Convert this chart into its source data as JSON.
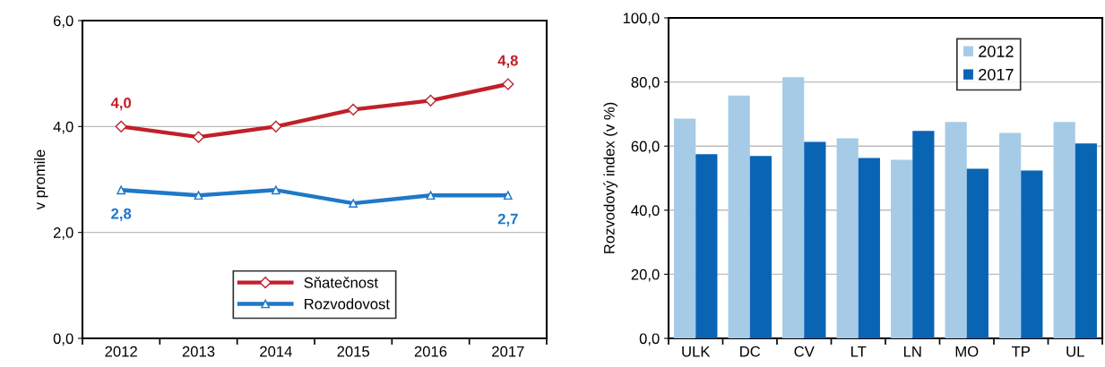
{
  "chart_data": [
    {
      "type": "line",
      "ylabel": "v promile",
      "categories": [
        "2012",
        "2013",
        "2014",
        "2015",
        "2016",
        "2017"
      ],
      "series": [
        {
          "name": "Sňatečnost",
          "color": "#c0202a",
          "marker": "diamond",
          "values": [
            4.0,
            3.8,
            4.0,
            4.32,
            4.49,
            4.8
          ],
          "value_labels": [
            "4,0",
            null,
            null,
            null,
            null,
            "4,8"
          ]
        },
        {
          "name": "Rozvodovost",
          "color": "#1f78c8",
          "marker": "triangle",
          "values": [
            2.8,
            2.7,
            2.8,
            2.55,
            2.7,
            2.7
          ],
          "value_labels": [
            "2,8",
            null,
            null,
            null,
            null,
            "2,7"
          ]
        }
      ],
      "ylim": [
        0,
        6
      ],
      "yticks": [
        {
          "value": 0,
          "label": "0,0"
        },
        {
          "value": 2,
          "label": "2,0"
        },
        {
          "value": 4,
          "label": "4,0"
        },
        {
          "value": 6,
          "label": "6,0"
        }
      ],
      "grid": "y",
      "legend": "bottom",
      "line_style": "solid"
    },
    {
      "type": "bar",
      "ylabel": "Rozvodový index (v %)",
      "categories": [
        "ULK",
        "DC",
        "CV",
        "LT",
        "LN",
        "MO",
        "TP",
        "UL"
      ],
      "series": [
        {
          "name": "2012",
          "color": "#a6cbe6",
          "values": [
            68.6,
            75.8,
            81.5,
            62.4,
            55.7,
            67.5,
            64.1,
            67.5
          ]
        },
        {
          "name": "2017",
          "color": "#0a64b4",
          "values": [
            57.5,
            56.9,
            61.3,
            56.3,
            64.7,
            52.9,
            52.4,
            60.8
          ]
        }
      ],
      "ylim": [
        0,
        100
      ],
      "yticks": [
        {
          "value": 0,
          "label": "0,0"
        },
        {
          "value": 20,
          "label": "20,0"
        },
        {
          "value": 40,
          "label": "40,0"
        },
        {
          "value": 60,
          "label": "60,0"
        },
        {
          "value": 80,
          "label": "80,0"
        },
        {
          "value": 100,
          "label": "100,0"
        }
      ],
      "grid": "y",
      "legend": "top right"
    }
  ]
}
